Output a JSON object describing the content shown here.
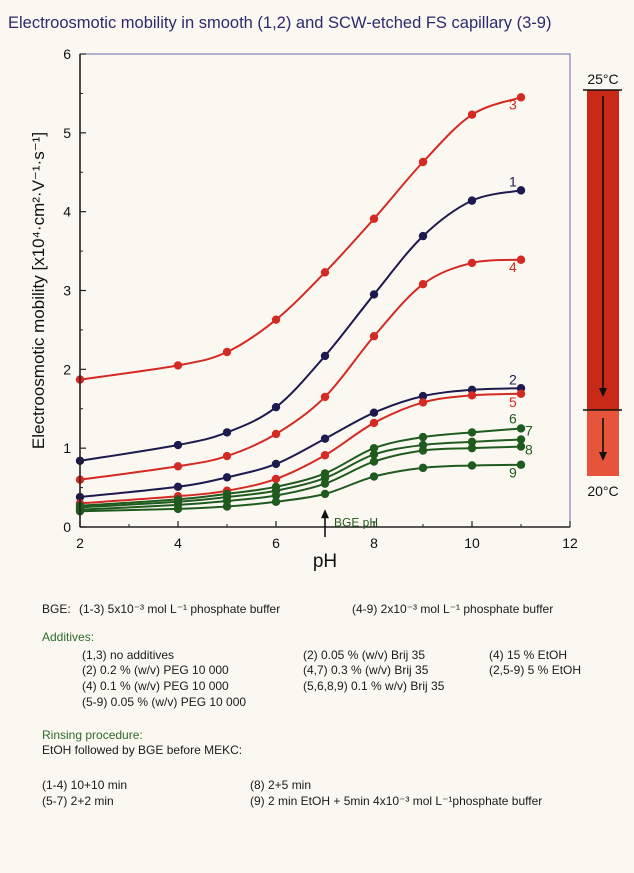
{
  "chart_data": {
    "type": "line",
    "title": "Electroosmotic mobility in smooth (1,2) and SCW-etched FS capillary (3-9)",
    "xlabel": "pH",
    "ylabel": "Electroosmotic mobility [x10⁴·cm²·V⁻¹·s⁻¹]",
    "xlim": [
      2,
      12
    ],
    "ylim": [
      0,
      6
    ],
    "x_ticks": [
      "2",
      "4",
      "6",
      "8",
      "10",
      "12"
    ],
    "y_ticks": [
      "0",
      "1",
      "2",
      "3",
      "4",
      "5",
      "6"
    ],
    "x": [
      2,
      4,
      5,
      6,
      7,
      8,
      9,
      10,
      11
    ],
    "series": [
      {
        "name": "3",
        "color": "#d42a23",
        "values": [
          1.87,
          2.05,
          2.22,
          2.63,
          3.23,
          3.91,
          4.63,
          5.23,
          5.45
        ]
      },
      {
        "name": "1",
        "color": "#1c1a4f",
        "values": [
          0.84,
          1.04,
          1.2,
          1.52,
          2.17,
          2.95,
          3.69,
          4.14,
          4.27
        ]
      },
      {
        "name": "4",
        "color": "#d42a23",
        "values": [
          0.6,
          0.77,
          0.9,
          1.18,
          1.65,
          2.42,
          3.08,
          3.35,
          3.39
        ]
      },
      {
        "name": "2",
        "color": "#1c1a4f",
        "values": [
          0.38,
          0.51,
          0.63,
          0.8,
          1.12,
          1.45,
          1.66,
          1.74,
          1.76
        ]
      },
      {
        "name": "5",
        "color": "#d42a23",
        "values": [
          0.3,
          0.39,
          0.46,
          0.61,
          0.91,
          1.32,
          1.58,
          1.67,
          1.69
        ]
      },
      {
        "name": "6",
        "color": "#1f5a1f",
        "values": [
          0.27,
          0.35,
          0.42,
          0.51,
          0.68,
          1.0,
          1.14,
          1.2,
          1.25
        ]
      },
      {
        "name": "7",
        "color": "#1f5a1f",
        "values": [
          0.25,
          0.32,
          0.38,
          0.46,
          0.62,
          0.92,
          1.04,
          1.08,
          1.11
        ]
      },
      {
        "name": "8",
        "color": "#1f5a1f",
        "values": [
          0.22,
          0.28,
          0.33,
          0.4,
          0.55,
          0.83,
          0.97,
          1.0,
          1.02
        ]
      },
      {
        "name": "9",
        "color": "#1f5a1f",
        "values": [
          0.2,
          0.23,
          0.26,
          0.32,
          0.42,
          0.64,
          0.75,
          0.78,
          0.79
        ]
      }
    ],
    "annotation": {
      "label": "BGE pH",
      "x": 7
    },
    "temperature_bar": {
      "top_label": "25°C",
      "bottom_label": "20°C",
      "top_color": "#c92a18",
      "bottom_color": "#e6553a"
    }
  },
  "notes": {
    "bge_label": "BGE:",
    "bge_1": "(1-3) 5x10⁻³ mol L⁻¹ phosphate buffer",
    "bge_2": "(4-9) 2x10⁻³ mol L⁻¹ phosphate buffer",
    "additives_label": "Additives:",
    "additives": [
      "(1,3) no additives",
      "(2) 0.2 % (w/v) PEG 10 000",
      "(4) 0.1 % (w/v) PEG 10 000",
      "(5-9) 0.05 % (w/v) PEG 10 000",
      "(2) 0.05 % (w/v) Brij 35",
      "(4,7) 0.3 % (w/v) Brij 35",
      "(5,6,8,9) 0.1 % w/v) Brij 35",
      "(4) 15 % EtOH",
      "(2,5-9) 5 % EtOH"
    ],
    "rinsing_label": "Rinsing procedure:",
    "rinsing_sub": "EtOH followed by BGE before MEKC:",
    "rinsing": [
      "(1-4) 10+10 min",
      "(5-7) 2+2 min",
      "(8) 2+5 min",
      "(9) 2 min EtOH + 5min 4x10⁻³ mol L⁻¹phosphate buffer"
    ]
  }
}
